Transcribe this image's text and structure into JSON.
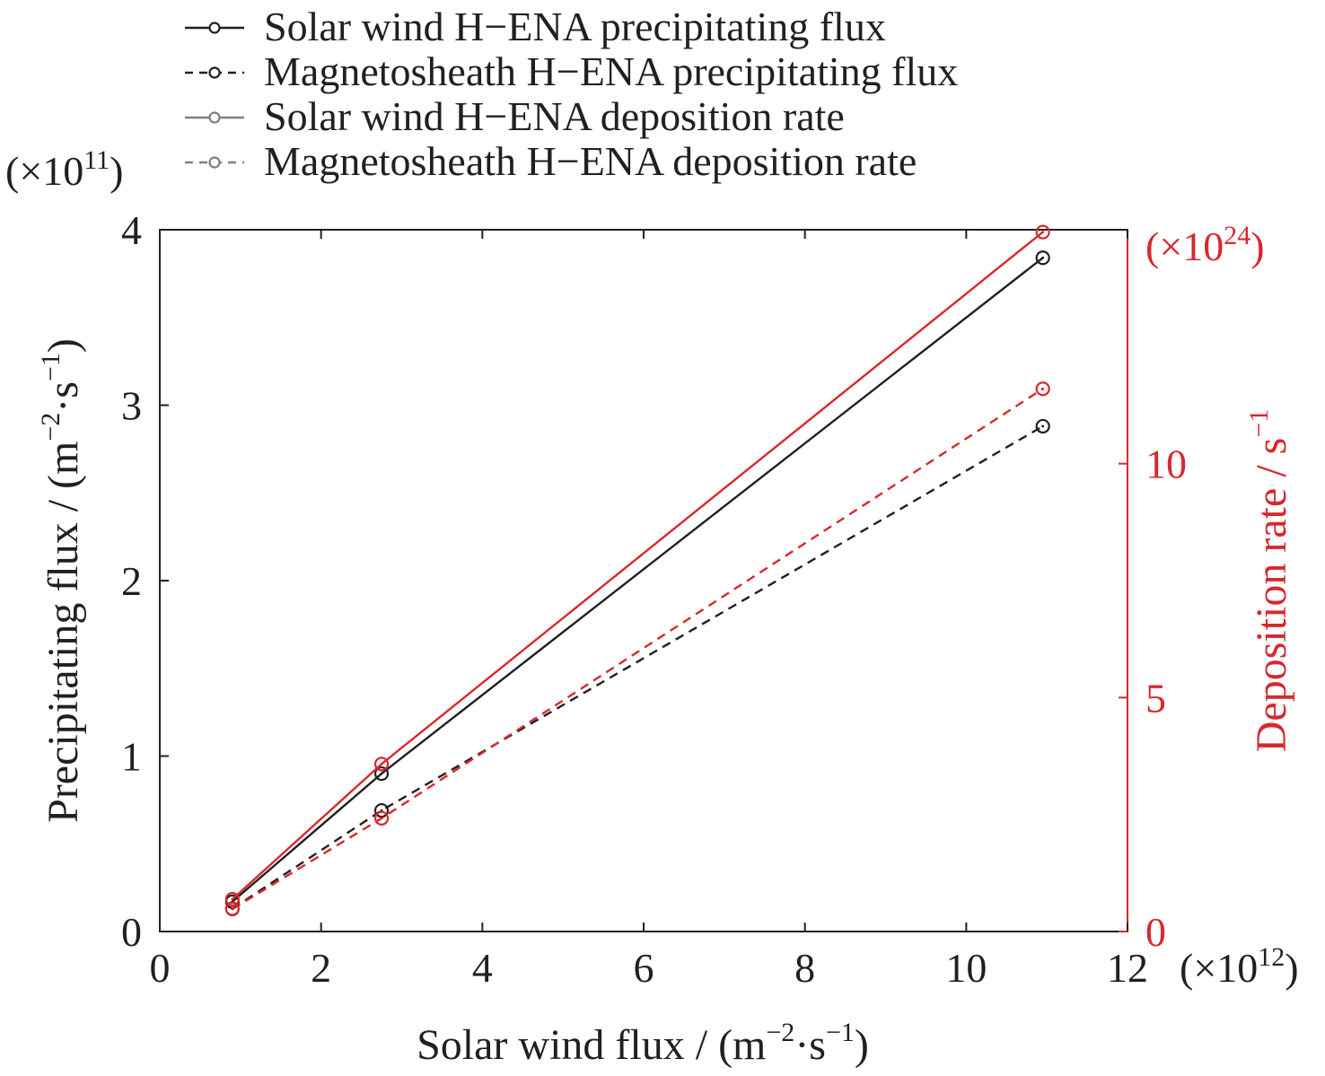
{
  "chart_data": {
    "type": "line",
    "xlabel": "Solar wind flux / (m",
    "xlabel_units": {
      "sup1": "−2",
      "mid": "·s",
      "sup2": "−1",
      "close": ")"
    },
    "x_multiplier": {
      "base": "(×10",
      "exp": "12",
      "close": ")"
    },
    "ylabel": "Precipitating flux / (m",
    "ylabel_units": {
      "sup1": "−2",
      "mid": "·s",
      "sup2": "−1",
      "close": ")"
    },
    "y_multiplier": {
      "base": "(×10",
      "exp": "11",
      "close": ")"
    },
    "y2label": "Deposition rate / s",
    "y2label_sup": "−1",
    "y2_multiplier": {
      "base": "(×10",
      "exp": "24",
      "close": ")"
    },
    "xlim": [
      0,
      12
    ],
    "ylim": [
      0,
      4
    ],
    "y2lim": [
      0,
      15
    ],
    "xticks": [
      "0",
      "2",
      "4",
      "6",
      "8",
      "10",
      "12"
    ],
    "xtick_values": [
      0,
      2,
      4,
      6,
      8,
      10,
      12
    ],
    "yticks": [
      "0",
      "1",
      "2",
      "3",
      "4"
    ],
    "ytick_values": [
      0,
      1,
      2,
      3,
      4
    ],
    "y2ticks": [
      "0",
      "5",
      "10"
    ],
    "y2tick_values": [
      0,
      5,
      10
    ],
    "grid": false,
    "legend_position": "top",
    "colors": {
      "left_axis": "#231f20",
      "right_axis": "#d7282f",
      "legend_deposition": "#7f7f7f"
    },
    "legend": [
      {
        "label": "Solar wind H−ENA precipitating flux",
        "dash": "solid",
        "color": "#231f20"
      },
      {
        "label": "Magnetosheath H−ENA precipitating flux",
        "dash": "dashed",
        "color": "#231f20"
      },
      {
        "label": "Solar wind H−ENA deposition rate",
        "dash": "solid",
        "color": "#7f7f7f"
      },
      {
        "label": "Magnetosheath H−ENA deposition rate",
        "dash": "dashed",
        "color": "#7f7f7f"
      }
    ],
    "series": [
      {
        "label": "Solar wind H−ENA precipitating flux",
        "axis": "left",
        "dash": "solid",
        "color": "#231f20",
        "x": [
          0.9,
          2.75,
          10.95
        ],
        "y": [
          0.17,
          0.9,
          3.84
        ]
      },
      {
        "label": "Magnetosheath H−ENA precipitating flux",
        "axis": "left",
        "dash": "dashed",
        "color": "#231f20",
        "x": [
          0.9,
          2.75,
          10.95
        ],
        "y": [
          0.13,
          0.69,
          2.88
        ]
      },
      {
        "label": "Solar wind H−ENA deposition rate",
        "axis": "right",
        "dash": "solid",
        "color": "#d7282f",
        "x": [
          0.9,
          2.75,
          10.95
        ],
        "y": [
          0.69,
          3.58,
          14.95
        ]
      },
      {
        "label": "Magnetosheath H−ENA deposition rate",
        "axis": "right",
        "dash": "dashed",
        "color": "#d7282f",
        "x": [
          0.9,
          2.75,
          10.95
        ],
        "y": [
          0.48,
          2.42,
          11.6
        ]
      }
    ]
  }
}
